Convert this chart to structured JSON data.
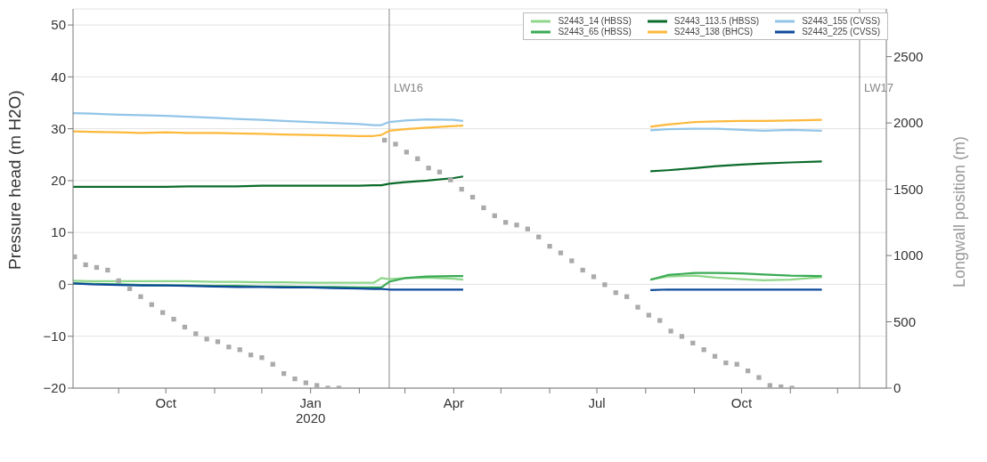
{
  "chart_data": {
    "type": "line",
    "xlabel": null,
    "ylabel": "Pressure head (m H2O)",
    "y2label": "Longwall position (m)",
    "x": [
      "2019-08-03",
      "2019-08-15",
      "2019-09-01",
      "2019-09-15",
      "2019-10-01",
      "2019-10-15",
      "2019-11-01",
      "2019-11-15",
      "2019-12-01",
      "2019-12-15",
      "2020-01-01",
      "2020-01-15",
      "2020-02-01",
      "2020-02-10",
      "2020-02-15",
      "2020-02-20",
      "2020-03-01",
      "2020-03-15",
      "2020-04-01",
      "2020-04-07",
      "2020-06-01",
      "2020-08-04",
      "2020-08-15",
      "2020-09-01",
      "2020-09-15",
      "2020-10-01",
      "2020-10-15",
      "2020-11-01",
      "2020-11-21"
    ],
    "series": [
      {
        "name": "S2443_14 (HBSS)",
        "color": "#8fd68a",
        "values": [
          0.7,
          0.6,
          0.6,
          0.6,
          0.6,
          0.6,
          0.5,
          0.5,
          0.4,
          0.4,
          0.3,
          0.3,
          0.3,
          0.3,
          1.2,
          1.0,
          1.2,
          1.3,
          1.1,
          0.9,
          null,
          0.9,
          1.5,
          1.7,
          1.3,
          1.0,
          0.8,
          0.9,
          1.4
        ]
      },
      {
        "name": "S2443_65 (HBSS)",
        "color": "#3aaa55",
        "values": [
          0.2,
          0.1,
          0.0,
          -0.1,
          -0.2,
          -0.2,
          -0.3,
          -0.3,
          -0.4,
          -0.4,
          -0.5,
          -0.5,
          -0.6,
          -0.6,
          -0.6,
          0.5,
          1.2,
          1.5,
          1.6,
          1.6,
          null,
          0.9,
          1.8,
          2.2,
          2.2,
          2.1,
          1.9,
          1.7,
          1.6
        ]
      },
      {
        "name": "S2443_113.5 (HBSS)",
        "color": "#0b6b2a",
        "values": [
          18.8,
          18.8,
          18.8,
          18.8,
          18.8,
          18.9,
          18.9,
          18.9,
          19.0,
          19.0,
          19.0,
          19.0,
          19.0,
          19.1,
          19.1,
          19.4,
          19.7,
          20.0,
          20.5,
          20.8,
          null,
          21.8,
          22.0,
          22.4,
          22.8,
          23.1,
          23.3,
          23.5,
          23.7
        ]
      },
      {
        "name": "S2443_138 (BHCS)",
        "color": "#fdb93c",
        "values": [
          29.5,
          29.4,
          29.3,
          29.2,
          29.3,
          29.2,
          29.2,
          29.1,
          29.0,
          28.9,
          28.8,
          28.7,
          28.6,
          28.6,
          28.8,
          29.6,
          29.9,
          30.2,
          30.5,
          30.6,
          null,
          30.4,
          30.8,
          31.3,
          31.4,
          31.5,
          31.5,
          31.6,
          31.7
        ]
      },
      {
        "name": "S2443_155 (CVSS)",
        "color": "#92c5e8",
        "values": [
          33.0,
          32.9,
          32.7,
          32.6,
          32.5,
          32.3,
          32.1,
          31.9,
          31.7,
          31.5,
          31.3,
          31.1,
          30.9,
          30.7,
          30.7,
          31.3,
          31.6,
          31.8,
          31.7,
          31.5,
          null,
          29.7,
          29.9,
          30.0,
          30.0,
          29.8,
          29.6,
          29.8,
          29.6
        ]
      },
      {
        "name": "S2443_225 (CVSS)",
        "color": "#0d4a9a",
        "values": [
          0.2,
          0.0,
          -0.1,
          -0.2,
          -0.2,
          -0.3,
          -0.4,
          -0.5,
          -0.5,
          -0.6,
          -0.6,
          -0.7,
          -0.8,
          -0.9,
          -0.9,
          -1.0,
          -1.0,
          -1.0,
          -1.0,
          -1.0,
          null,
          -1.1,
          -1.0,
          -1.0,
          -1.0,
          -1.0,
          -1.0,
          -1.0,
          -1.0
        ]
      },
      {
        "type": "scatter",
        "axis": "y2",
        "marker": "square",
        "color": "#aaaaaa",
        "x": [
          "2019-08-04",
          "2019-08-11",
          "2019-08-18",
          "2019-08-25",
          "2019-09-01",
          "2019-09-08",
          "2019-09-15",
          "2019-09-22",
          "2019-09-29",
          "2019-10-06",
          "2019-10-13",
          "2019-10-20",
          "2019-10-27",
          "2019-11-03",
          "2019-11-10",
          "2019-11-17",
          "2019-11-24",
          "2019-12-01",
          "2019-12-08",
          "2019-12-15",
          "2019-12-22",
          "2019-12-29",
          "2020-01-05",
          "2020-01-12",
          "2020-01-19",
          "2020-02-17",
          "2020-02-24",
          "2020-03-02",
          "2020-03-09",
          "2020-03-16",
          "2020-03-23",
          "2020-03-30",
          "2020-04-06",
          "2020-04-13",
          "2020-04-20",
          "2020-04-27",
          "2020-05-04",
          "2020-05-11",
          "2020-05-18",
          "2020-05-25",
          "2020-06-01",
          "2020-06-08",
          "2020-06-15",
          "2020-06-22",
          "2020-06-29",
          "2020-07-06",
          "2020-07-13",
          "2020-07-20",
          "2020-07-27",
          "2020-08-03",
          "2020-08-10",
          "2020-08-17",
          "2020-08-24",
          "2020-08-31",
          "2020-09-07",
          "2020-09-14",
          "2020-09-21",
          "2020-09-28",
          "2020-10-05",
          "2020-10-12",
          "2020-10-19",
          "2020-10-26",
          "2020-11-02"
        ],
        "values": [
          990,
          930,
          910,
          890,
          810,
          750,
          690,
          630,
          570,
          520,
          460,
          410,
          370,
          350,
          310,
          290,
          250,
          230,
          180,
          110,
          70,
          40,
          20,
          0,
          0,
          1870,
          1840,
          1780,
          1730,
          1660,
          1630,
          1570,
          1500,
          1440,
          1360,
          1300,
          1250,
          1230,
          1200,
          1140,
          1070,
          1020,
          960,
          890,
          840,
          780,
          720,
          690,
          610,
          550,
          510,
          430,
          390,
          340,
          290,
          240,
          190,
          180,
          130,
          80,
          20,
          10,
          0
        ]
      }
    ],
    "xlim": [
      "2019-08-03",
      "2021-01-01"
    ],
    "xticks": [
      {
        "value": "2019-09-01",
        "label": null
      },
      {
        "value": "2019-10-01",
        "label": "Oct"
      },
      {
        "value": "2019-11-01",
        "label": null
      },
      {
        "value": "2019-12-01",
        "label": null
      },
      {
        "value": "2020-01-01",
        "label": "Jan\n2020"
      },
      {
        "value": "2020-02-01",
        "label": null
      },
      {
        "value": "2020-03-01",
        "label": null
      },
      {
        "value": "2020-04-01",
        "label": "Apr"
      },
      {
        "value": "2020-05-01",
        "label": null
      },
      {
        "value": "2020-06-01",
        "label": null
      },
      {
        "value": "2020-07-01",
        "label": "Jul"
      },
      {
        "value": "2020-08-01",
        "label": null
      },
      {
        "value": "2020-09-01",
        "label": null
      },
      {
        "value": "2020-10-01",
        "label": "Oct"
      },
      {
        "value": "2020-11-01",
        "label": null
      },
      {
        "value": "2020-12-01",
        "label": null
      }
    ],
    "ylim": [
      -20,
      53.1
    ],
    "yticks": [
      -20,
      -10,
      0,
      10,
      20,
      30,
      40,
      50
    ],
    "y2lim": [
      0,
      2860
    ],
    "y2ticks": [
      0,
      500,
      1000,
      1500,
      2000,
      2500
    ],
    "ref_lines": [
      {
        "axis": "x",
        "value": "2020-02-20",
        "label": "LW16",
        "color": "#888888"
      },
      {
        "axis": "x",
        "value": "2020-12-15",
        "label": "LW17",
        "color": "#888888"
      }
    ],
    "grid": "y",
    "legend": "top right",
    "line_style": "solid"
  }
}
